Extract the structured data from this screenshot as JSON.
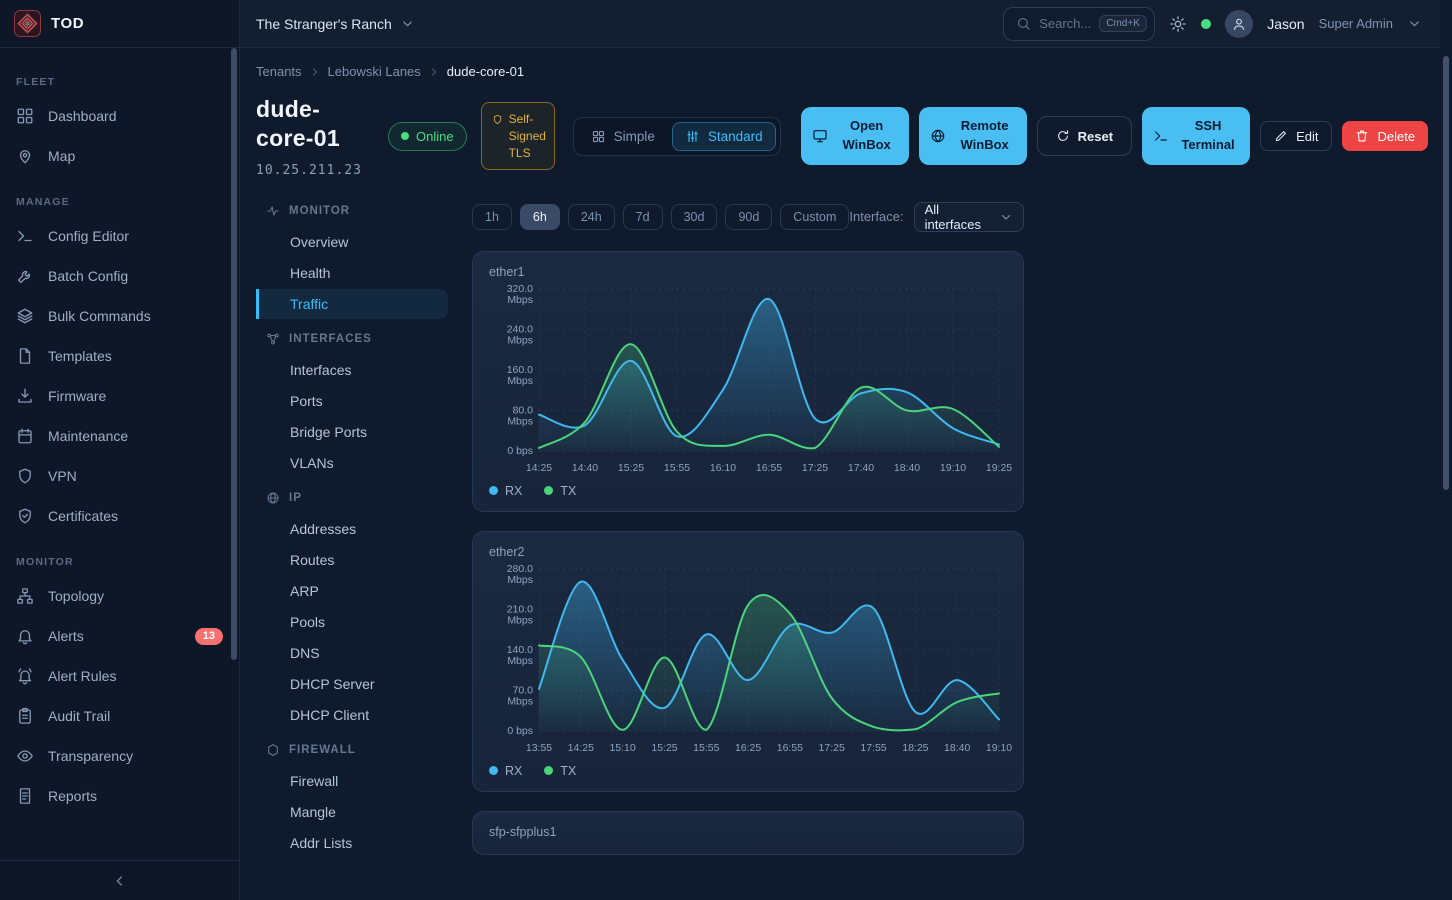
{
  "app": {
    "logo": "TOD"
  },
  "topbar": {
    "tenant": "The Stranger's Ranch",
    "search_placeholder": "Search...",
    "search_shortcut": "Cmd+K",
    "user_name": "Jason",
    "user_role": "Super Admin"
  },
  "sidebar": {
    "sections": [
      {
        "label": "FLEET",
        "items": [
          {
            "label": "Dashboard",
            "icon": "dashboard-icon"
          },
          {
            "label": "Map",
            "icon": "map-pin-icon"
          }
        ]
      },
      {
        "label": "MANAGE",
        "items": [
          {
            "label": "Config Editor",
            "icon": "terminal-icon"
          },
          {
            "label": "Batch Config",
            "icon": "wrench-icon"
          },
          {
            "label": "Bulk Commands",
            "icon": "layers-icon"
          },
          {
            "label": "Templates",
            "icon": "file-icon"
          },
          {
            "label": "Firmware",
            "icon": "download-icon"
          },
          {
            "label": "Maintenance",
            "icon": "calendar-icon"
          },
          {
            "label": "VPN",
            "icon": "shield-icon"
          },
          {
            "label": "Certificates",
            "icon": "shield-check-icon"
          }
        ]
      },
      {
        "label": "MONITOR",
        "items": [
          {
            "label": "Topology",
            "icon": "topology-icon"
          },
          {
            "label": "Alerts",
            "icon": "bell-icon",
            "badge": "13"
          },
          {
            "label": "Alert Rules",
            "icon": "bell-ring-icon"
          },
          {
            "label": "Audit Trail",
            "icon": "clipboard-icon"
          },
          {
            "label": "Transparency",
            "icon": "eye-icon"
          },
          {
            "label": "Reports",
            "icon": "report-icon"
          }
        ]
      }
    ]
  },
  "breadcrumb": {
    "items": [
      "Tenants",
      "Lebowski Lanes",
      "dude-core-01"
    ]
  },
  "device": {
    "name": "dude-core-01",
    "status_label": "Online",
    "tls_label": "Self-Signed TLS",
    "ip": "10.25.211.23",
    "view_modes": [
      {
        "label": "Simple",
        "icon": "grid-icon",
        "active": false
      },
      {
        "label": "Standard",
        "icon": "sliders-icon",
        "active": true
      }
    ],
    "actions": [
      {
        "label": "Open WinBox",
        "icon": "monitor-icon",
        "style": "primary"
      },
      {
        "label": "Remote WinBox",
        "icon": "globe-icon",
        "style": "primary"
      },
      {
        "label": "Reset",
        "icon": "refresh-icon",
        "style": "secondary"
      },
      {
        "label": "SSH Terminal",
        "icon": "terminal-icon",
        "style": "primary"
      },
      {
        "label": "Edit",
        "icon": "pencil-icon",
        "style": "ghost"
      },
      {
        "label": "Delete",
        "icon": "trash-icon",
        "style": "danger"
      }
    ]
  },
  "subnav": {
    "active": "Traffic",
    "sections": [
      {
        "label": "MONITOR",
        "icon": "activity-icon",
        "items": [
          "Overview",
          "Health",
          "Traffic"
        ]
      },
      {
        "label": "INTERFACES",
        "icon": "network-icon",
        "items": [
          "Interfaces",
          "Ports",
          "Bridge Ports",
          "VLANs"
        ]
      },
      {
        "label": "IP",
        "icon": "globe-icon",
        "items": [
          "Addresses",
          "Routes",
          "ARP",
          "Pools",
          "DNS",
          "DHCP Server",
          "DHCP Client"
        ]
      },
      {
        "label": "FIREWALL",
        "icon": "firewall-icon",
        "items": [
          "Firewall",
          "Mangle",
          "Addr Lists"
        ]
      }
    ]
  },
  "controls": {
    "ranges": [
      "1h",
      "6h",
      "24h",
      "7d",
      "30d",
      "90d",
      "Custom"
    ],
    "active_range": "6h",
    "interface_label": "Interface:",
    "interface_value": "All interfaces"
  },
  "chart_data": [
    {
      "type": "area",
      "title": "ether1",
      "unit": "Mbps",
      "zero_tick_label": "0 bps",
      "ylim": [
        0,
        320
      ],
      "yticks": [
        320,
        240,
        160,
        80,
        0
      ],
      "categories": [
        "14:25",
        "14:40",
        "15:25",
        "15:55",
        "16:10",
        "16:55",
        "17:25",
        "17:40",
        "18:40",
        "19:10",
        "19:25"
      ],
      "series": [
        {
          "name": "RX",
          "color": "#41b8f0",
          "values": [
            72,
            51,
            178,
            29,
            121,
            300,
            64,
            114,
            116,
            45,
            13
          ]
        },
        {
          "name": "TX",
          "color": "#4bd47b",
          "values": [
            6,
            57,
            211,
            38,
            10,
            32,
            6,
            125,
            80,
            83,
            8
          ]
        }
      ],
      "legend": [
        "RX",
        "TX"
      ],
      "grid": true,
      "legend_position": "bottom-left"
    },
    {
      "type": "area",
      "title": "ether2",
      "unit": "Mbps",
      "zero_tick_label": "0 bps",
      "ylim": [
        0,
        280
      ],
      "yticks": [
        280,
        210,
        140,
        70,
        0
      ],
      "categories": [
        "13:55",
        "14:25",
        "15:10",
        "15:25",
        "15:55",
        "16:25",
        "16:55",
        "17:25",
        "17:55",
        "18:25",
        "18:40",
        "19:10"
      ],
      "series": [
        {
          "name": "RX",
          "color": "#41b8f0",
          "values": [
            73,
            258,
            123,
            40,
            167,
            88,
            182,
            170,
            212,
            33,
            88,
            20
          ]
        },
        {
          "name": "TX",
          "color": "#4bd47b",
          "values": [
            148,
            128,
            2,
            127,
            2,
            218,
            203,
            57,
            7,
            3,
            50,
            65
          ]
        }
      ],
      "legend": [
        "RX",
        "TX"
      ],
      "grid": true,
      "legend_position": "bottom-left"
    },
    {
      "type": "area",
      "title": "sfp-sfpplus1",
      "partial": true
    }
  ]
}
